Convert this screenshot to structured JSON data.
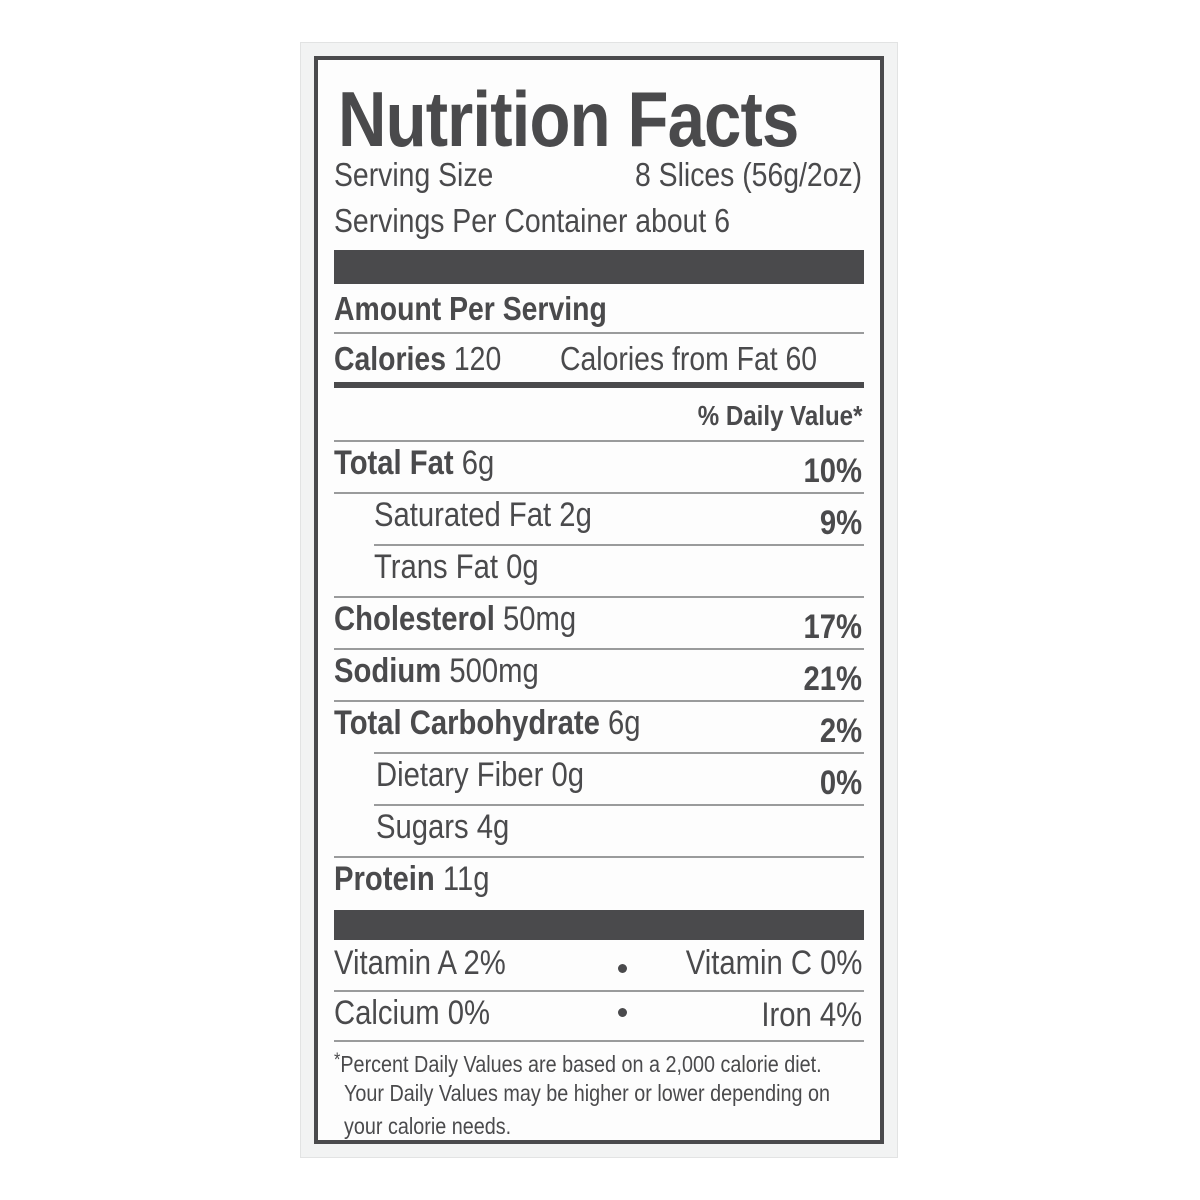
{
  "label": {
    "title": "Nutrition Facts",
    "serving_size_label": "Serving Size",
    "serving_size_value": "8 Slices (56g/2oz)",
    "servings_per_container": "Servings Per Container about 6",
    "amount_per_serving": "Amount Per Serving",
    "calories_label": "Calories",
    "calories_value": "120",
    "calories_from_fat": "Calories from Fat 60",
    "daily_value_header": "% Daily Value*",
    "nutrients": [
      {
        "name": "Total Fat",
        "amount": "6g",
        "dv": "10%"
      },
      {
        "name": "Saturated Fat",
        "amount": "2g",
        "dv": "9%"
      },
      {
        "name": "Trans Fat",
        "amount": "0g",
        "dv": ""
      },
      {
        "name": "Cholesterol",
        "amount": "50mg",
        "dv": "17%"
      },
      {
        "name": "Sodium",
        "amount": "500mg",
        "dv": "21%"
      },
      {
        "name": "Total Carbohydrate",
        "amount": "6g",
        "dv": "2%"
      },
      {
        "name": "Dietary Fiber",
        "amount": "0g",
        "dv": "0%"
      },
      {
        "name": "Sugars",
        "amount": "4g",
        "dv": ""
      },
      {
        "name": "Protein",
        "amount": "11g",
        "dv": ""
      }
    ],
    "vitamins": {
      "vitamin_a": "Vitamin A 2%",
      "vitamin_c": "Vitamin C 0%",
      "calcium": "Calcium 0%",
      "iron": "Iron 4%"
    },
    "footnote_star": "*",
    "footnote_line1": "Percent Daily Values are based on a 2,000  calorie diet.",
    "footnote_line2": "Your Daily Values may be higher or lower depending on",
    "footnote_line3": "your calorie needs."
  }
}
